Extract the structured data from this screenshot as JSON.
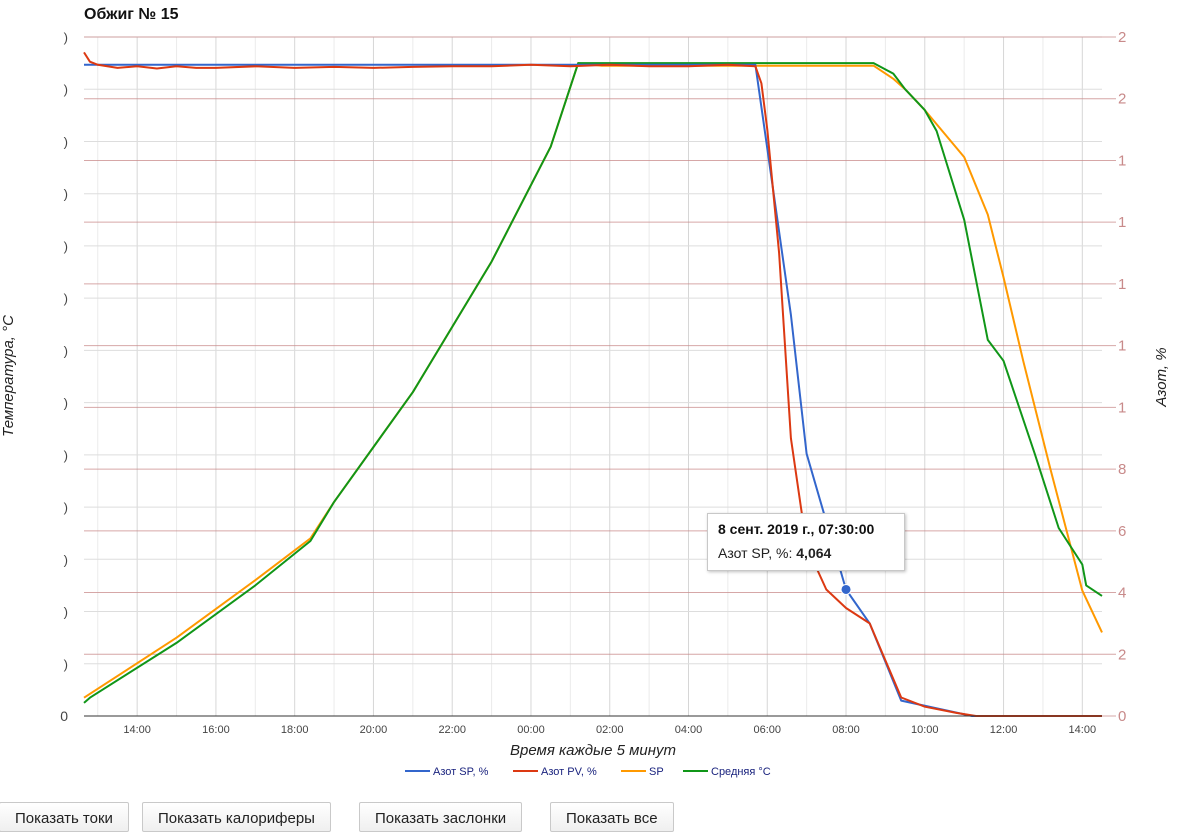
{
  "chart_data": {
    "type": "line",
    "title": "Обжиг № 15",
    "xlabel": "Время каждые 5 минут",
    "ylabel_left": "Температура, °C",
    "ylabel_right": "Азот, %",
    "x_tick_labels": [
      "14:00",
      "16:00",
      "18:00",
      "20:00",
      "22:00",
      "00:00",
      "02:00",
      "04:00",
      "06:00",
      "08:00",
      "10:00",
      "12:00",
      "14:00"
    ],
    "x_ticks_hours": [
      1,
      3,
      5,
      7,
      9,
      11,
      13,
      15,
      17,
      19,
      21,
      23,
      25
    ],
    "x_range_hours": [
      -0.35,
      25.5
    ],
    "left_axis": {
      "ylim": [
        0,
        13
      ],
      "first_tick_label": "0",
      "tick_count": 14
    },
    "right_axis": {
      "ylim": [
        0,
        22
      ],
      "tick_count": 12,
      "visible_labels": [
        {
          "v": 0,
          "t": "0"
        },
        {
          "v": 2,
          "t": "2"
        },
        {
          "v": 4,
          "t": "4"
        },
        {
          "v": 6,
          "t": "6"
        },
        {
          "v": 8,
          "t": "8"
        },
        {
          "v": 10,
          "t": "1"
        },
        {
          "v": 12,
          "t": "1"
        },
        {
          "v": 14,
          "t": "1"
        },
        {
          "v": 16,
          "t": "1"
        },
        {
          "v": 18,
          "t": "1"
        },
        {
          "v": 20,
          "t": "2"
        },
        {
          "v": 22,
          "t": "2"
        }
      ]
    },
    "grid": true,
    "legend_position": "bottom",
    "series": [
      {
        "name": "Азот SP, %",
        "axis": "right",
        "color": "#3366cc",
        "x": [
          -0.35,
          16.7,
          17.6,
          18.0,
          19.0,
          19.6,
          20.4,
          22.2,
          25.5
        ],
        "y": [
          21.1,
          21.1,
          13.0,
          8.5,
          4.1,
          3.0,
          0.5,
          0.0,
          0.0
        ]
      },
      {
        "name": "Азот PV, %",
        "axis": "right",
        "color": "#dc3912",
        "x": [
          -0.35,
          -0.2,
          0.0,
          0.5,
          1.0,
          1.5,
          2.0,
          2.5,
          3.0,
          4.0,
          5.0,
          6.0,
          7.0,
          8.0,
          9.0,
          10.0,
          11.0,
          12.0,
          13.0,
          14.0,
          15.0,
          16.0,
          16.7,
          16.85,
          17.0,
          17.3,
          17.6,
          18.0,
          18.5,
          19.0,
          19.6,
          20.0,
          20.4,
          21.0,
          21.8,
          22.3,
          23.0,
          25.5
        ],
        "y": [
          21.5,
          21.2,
          21.1,
          21.0,
          21.05,
          20.98,
          21.05,
          21.0,
          21.0,
          21.05,
          21.0,
          21.03,
          21.0,
          21.03,
          21.05,
          21.05,
          21.1,
          21.05,
          21.1,
          21.05,
          21.05,
          21.1,
          21.05,
          20.5,
          19.0,
          15.0,
          9.0,
          5.5,
          4.1,
          3.5,
          3.0,
          1.8,
          0.6,
          0.3,
          0.1,
          0.0,
          0.0,
          0.0
        ]
      },
      {
        "name": "SP",
        "axis": "left",
        "color": "#ff9900",
        "x": [
          -0.35,
          2.0,
          4.0,
          5.4,
          6.0,
          8.0,
          10.0,
          11.5,
          12.2,
          12.8,
          16.0,
          18.0,
          19.7,
          20.2,
          20.5,
          21.0,
          22.0,
          22.6,
          23.0,
          23.5,
          24.2,
          25.0,
          25.5
        ],
        "y": [
          0.35,
          1.5,
          2.6,
          3.4,
          4.1,
          6.2,
          8.7,
          10.9,
          12.5,
          12.45,
          12.45,
          12.45,
          12.45,
          12.2,
          12.0,
          11.6,
          10.7,
          9.6,
          8.4,
          6.8,
          4.7,
          2.4,
          1.6
        ]
      },
      {
        "name": "Средняя °C",
        "axis": "left",
        "color": "#109618",
        "x": [
          -0.35,
          -0.2,
          2.0,
          4.0,
          5.4,
          6.0,
          8.0,
          10.0,
          11.5,
          12.2,
          12.8,
          16.0,
          18.0,
          19.7,
          20.2,
          20.5,
          21.0,
          21.3,
          22.0,
          22.6,
          23.0,
          23.8,
          24.4,
          25.0,
          25.1,
          25.5
        ],
        "y": [
          0.25,
          0.35,
          1.4,
          2.5,
          3.35,
          4.1,
          6.2,
          8.7,
          10.9,
          12.5,
          12.5,
          12.5,
          12.5,
          12.5,
          12.3,
          12.0,
          11.6,
          11.2,
          9.5,
          7.2,
          6.8,
          5.0,
          3.6,
          2.9,
          2.5,
          2.3
        ]
      }
    ],
    "tooltip": {
      "line1": "8 сент. 2019 г., 07:30:00",
      "label": "Азот SP, %:",
      "value": "4,064",
      "point_x": 19.0,
      "point_y": 4.1
    }
  },
  "buttons": {
    "show_currents": "Показать токи",
    "show_heaters": "Показать калориферы",
    "show_dampers": "Показать заслонки",
    "show_all": "Показать все"
  },
  "colors": {
    "grid": "#dddddd",
    "grid_right": "#c88a8a",
    "axis_text": "#444444"
  }
}
